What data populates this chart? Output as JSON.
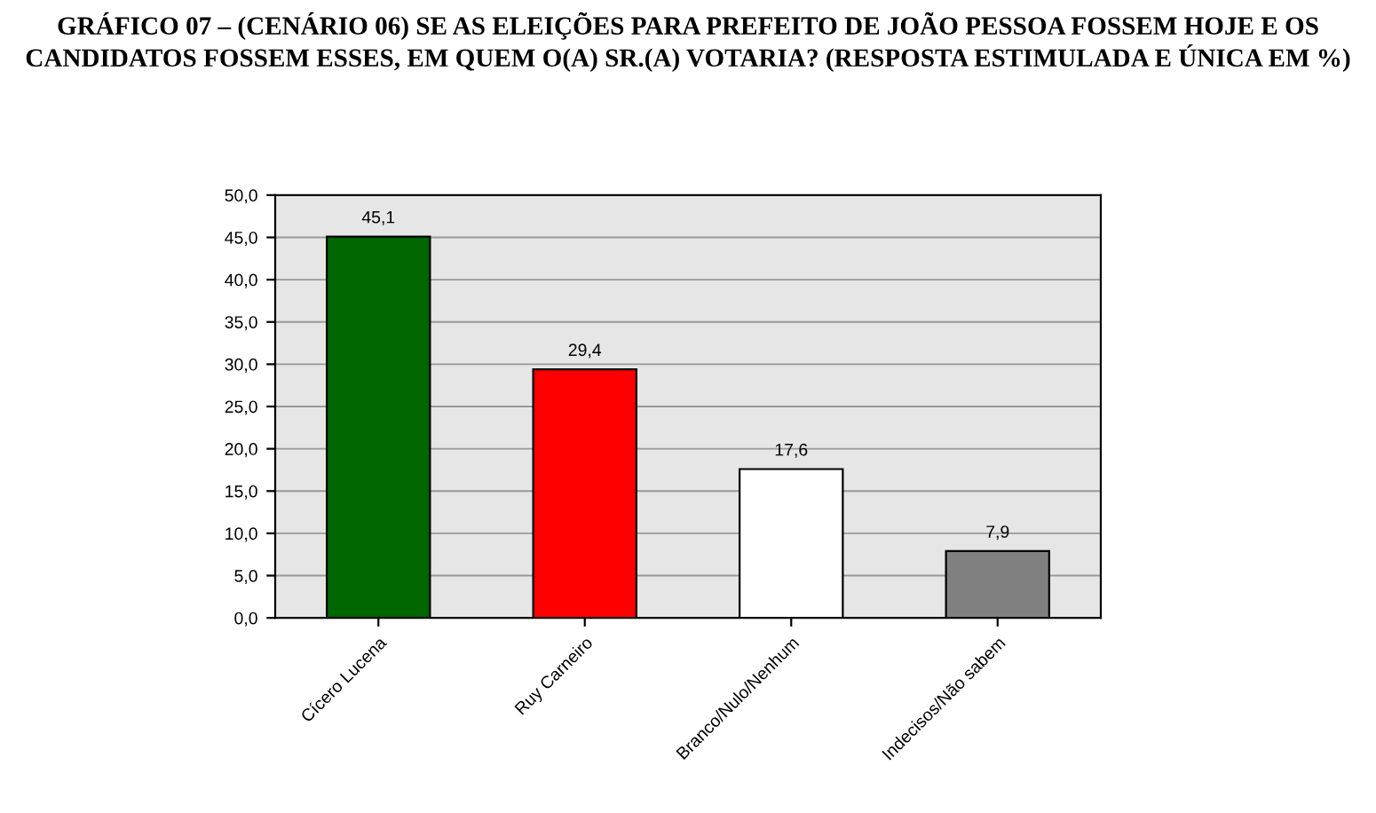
{
  "chart_data": {
    "type": "bar",
    "title": "GRÁFICO 07 – (CENÁRIO 06) SE AS ELEIÇÕES PARA PREFEITO DE JOÃO PESSOA FOSSEM HOJE E OS CANDIDATOS FOSSEM ESSES, EM QUEM O(A) SR.(A) VOTARIA? (RESPOSTA ESTIMULADA E ÚNICA EM %)",
    "categories": [
      "Cícero Lucena",
      "Ruy Carneiro",
      "Branco/Nulo/Nenhum",
      "Indecisos/Não sabem"
    ],
    "values": [
      45.1,
      29.4,
      17.6,
      7.9
    ],
    "colors": [
      "#006600",
      "#ff0000",
      "#ffffff",
      "#808080"
    ],
    "value_labels": [
      "45,1",
      "29,4",
      "17,6",
      "7,9"
    ],
    "ylim": [
      0,
      50
    ],
    "yticks": [
      {
        "value": 0,
        "label": "0,0"
      },
      {
        "value": 5,
        "label": "5,0"
      },
      {
        "value": 10,
        "label": "10,0"
      },
      {
        "value": 15,
        "label": "15,0"
      },
      {
        "value": 20,
        "label": "20,0"
      },
      {
        "value": 25,
        "label": "25,0"
      },
      {
        "value": 30,
        "label": "30,0"
      },
      {
        "value": 35,
        "label": "35,0"
      },
      {
        "value": 40,
        "label": "40,0"
      },
      {
        "value": 45,
        "label": "45,0"
      },
      {
        "value": 50,
        "label": "50,0"
      }
    ],
    "grid": "y"
  }
}
